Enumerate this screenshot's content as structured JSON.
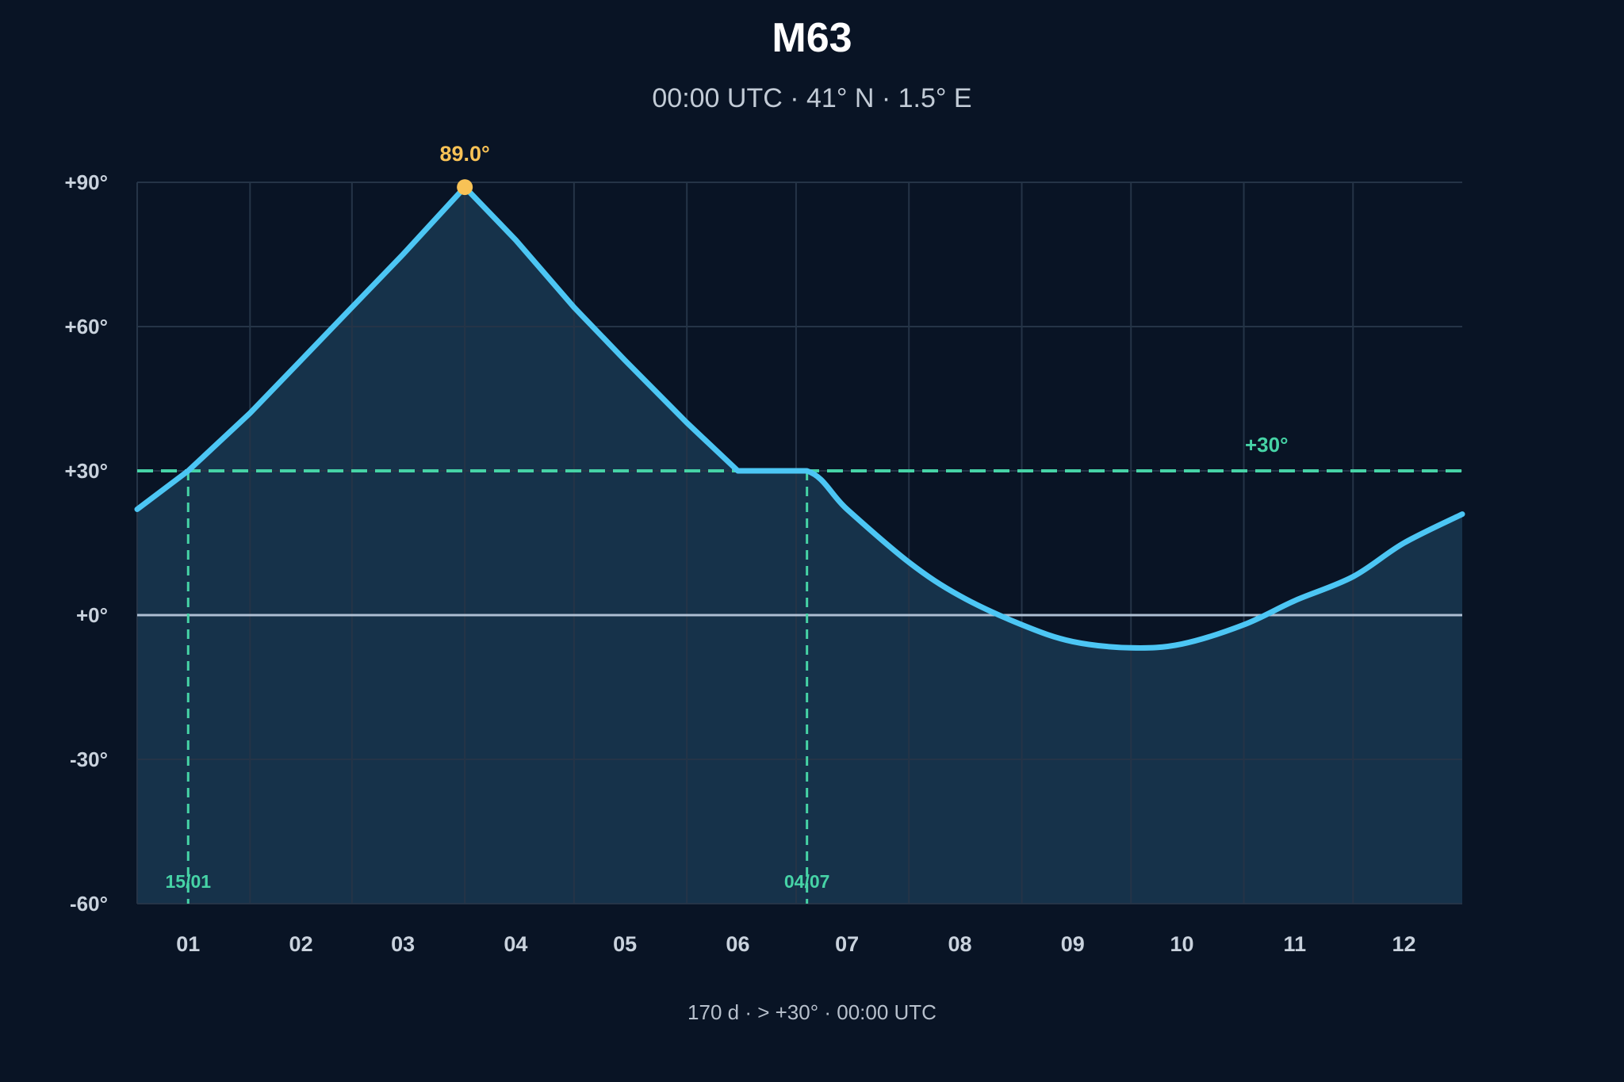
{
  "title": "M63",
  "subtitle": "00:00 UTC · 41° N · 1.5° E",
  "footer": "170 d · > +30° · 00:00 UTC",
  "colors": {
    "background": "#091425",
    "grid": "#253447",
    "area": "#16324a",
    "curve": "#4cc6f4",
    "threshold": "#46d3a6",
    "horizon": "#aebfd3",
    "peak": "#f8c256",
    "axis_text": "#c9d2dd"
  },
  "chart_data": {
    "type": "line",
    "title": "M63",
    "xlabel": "",
    "ylabel": "",
    "x_tick_labels": [
      "01",
      "02",
      "03",
      "04",
      "05",
      "06",
      "07",
      "08",
      "09",
      "10",
      "11",
      "12"
    ],
    "y_ticks": [
      90,
      60,
      30,
      0,
      -30,
      -60
    ],
    "y_tick_labels": [
      "+90°",
      "+60°",
      "+30°",
      "+0°",
      "-30°",
      "-60°"
    ],
    "ylim": [
      -60,
      90
    ],
    "xlim": [
      "2025-01-01",
      "2025-12-31"
    ],
    "series": [
      {
        "x": [
          "2025-01-01",
          "2025-01-15",
          "2025-02-01",
          "2025-02-15",
          "2025-03-01",
          "2025-03-15",
          "2025-04-01",
          "2025-04-15",
          "2025-05-01",
          "2025-05-15",
          "2025-06-01",
          "2025-06-15",
          "2025-07-04",
          "2025-07-15",
          "2025-08-01",
          "2025-08-15",
          "2025-09-01",
          "2025-09-15",
          "2025-10-01",
          "2025-10-15",
          "2025-11-01",
          "2025-11-15",
          "2025-12-01",
          "2025-12-15",
          "2025-12-31"
        ],
        "y": [
          22,
          30,
          42,
          53,
          64,
          75,
          89,
          78,
          64,
          53,
          40,
          30,
          30,
          22,
          11,
          4,
          -2,
          -5.5,
          -6.8,
          -6,
          -2,
          3,
          8,
          15,
          21
        ]
      }
    ],
    "peak": {
      "x": "2025-04-01",
      "y": 89.0,
      "label": "89.0°"
    },
    "threshold": {
      "y": 30,
      "label": "+30°"
    },
    "crossings": [
      {
        "x": "2025-01-15",
        "label": "15/01"
      },
      {
        "x": "2025-07-04",
        "label": "04/07"
      }
    ],
    "grid": true
  }
}
